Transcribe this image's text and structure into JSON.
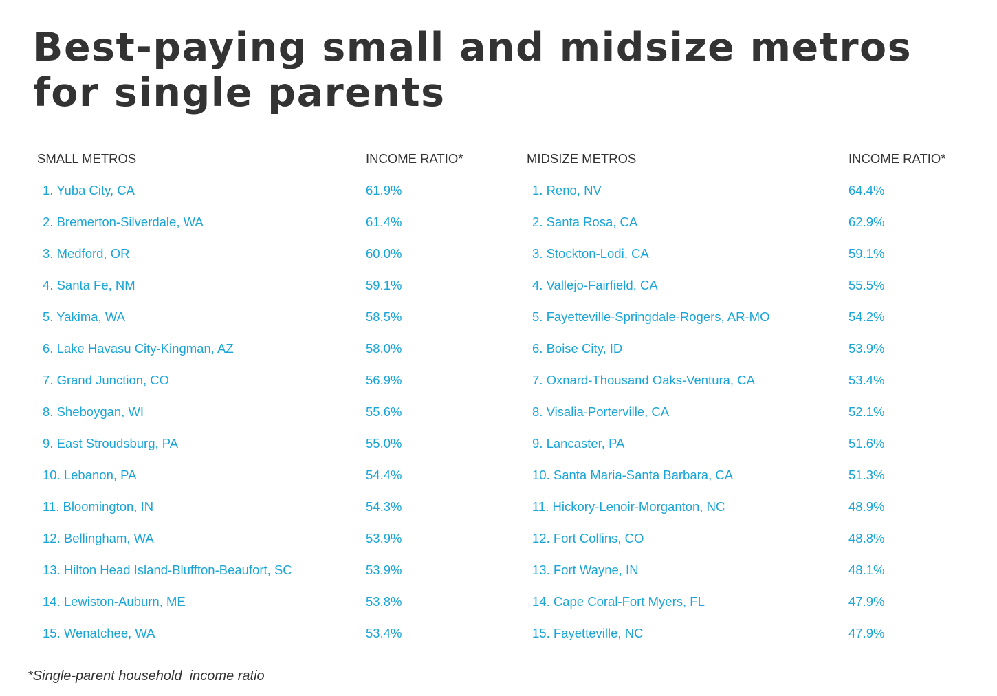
{
  "title": "Best-paying small and midsize metros for single parents",
  "small": {
    "header_name": "SMALL METROS",
    "header_ratio": "INCOME RATIO*",
    "rows": [
      {
        "name": "1. Yuba City, CA",
        "ratio": "61.9%"
      },
      {
        "name": "2. Bremerton-Silverdale, WA",
        "ratio": "61.4%"
      },
      {
        "name": "3. Medford, OR",
        "ratio": "60.0%"
      },
      {
        "name": "4. Santa Fe, NM",
        "ratio": "59.1%"
      },
      {
        "name": "5. Yakima, WA",
        "ratio": "58.5%"
      },
      {
        "name": "6. Lake Havasu City-Kingman, AZ",
        "ratio": "58.0%"
      },
      {
        "name": "7. Grand Junction, CO",
        "ratio": "56.9%"
      },
      {
        "name": "8. Sheboygan, WI",
        "ratio": "55.6%"
      },
      {
        "name": "9. East Stroudsburg, PA",
        "ratio": "55.0%"
      },
      {
        "name": "10. Lebanon, PA",
        "ratio": "54.4%"
      },
      {
        "name": "11. Bloomington, IN",
        "ratio": "54.3%"
      },
      {
        "name": "12. Bellingham, WA",
        "ratio": "53.9%"
      },
      {
        "name": "13. Hilton Head Island-Bluffton-Beaufort, SC",
        "ratio": "53.9%"
      },
      {
        "name": "14. Lewiston-Auburn, ME",
        "ratio": "53.8%"
      },
      {
        "name": "15. Wenatchee, WA",
        "ratio": "53.4%"
      }
    ]
  },
  "midsize": {
    "header_name": "MIDSIZE METROS",
    "header_ratio": "INCOME RATIO*",
    "rows": [
      {
        "name": "1. Reno, NV",
        "ratio": "64.4%"
      },
      {
        "name": "2. Santa Rosa, CA",
        "ratio": "62.9%"
      },
      {
        "name": "3. Stockton-Lodi, CA",
        "ratio": "59.1%"
      },
      {
        "name": "4. Vallejo-Fairfield, CA",
        "ratio": "55.5%"
      },
      {
        "name": "5. Fayetteville-Springdale-Rogers, AR-MO",
        "ratio": "54.2%"
      },
      {
        "name": "6. Boise City, ID",
        "ratio": "53.9%"
      },
      {
        "name": "7. Oxnard-Thousand Oaks-Ventura, CA",
        "ratio": "53.4%"
      },
      {
        "name": "8. Visalia-Porterville, CA",
        "ratio": "52.1%"
      },
      {
        "name": "9. Lancaster, PA",
        "ratio": "51.6%"
      },
      {
        "name": "10. Santa Maria-Santa Barbara, CA",
        "ratio": "51.3%"
      },
      {
        "name": "11. Hickory-Lenoir-Morganton, NC",
        "ratio": "48.9%"
      },
      {
        "name": "12. Fort Collins, CO",
        "ratio": "48.8%"
      },
      {
        "name": "13. Fort Wayne, IN",
        "ratio": "48.1%"
      },
      {
        "name": "14. Cape Coral-Fort Myers, FL",
        "ratio": "47.9%"
      },
      {
        "name": "15. Fayetteville, NC",
        "ratio": "47.9%"
      }
    ]
  },
  "footnote": "*Single-parent household  income ratio",
  "colors": {
    "text": "#333333",
    "accent": "#1aa5d6"
  }
}
